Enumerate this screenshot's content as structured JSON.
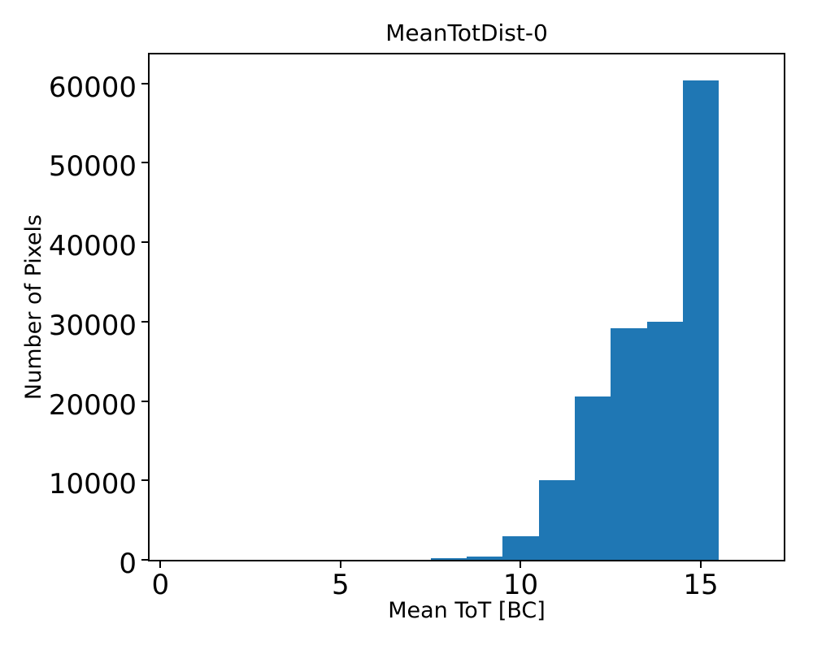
{
  "figure": {
    "title": "MeanTotDist-0",
    "xlabel": "Mean ToT [BC]",
    "ylabel": "Number of Pixels",
    "background_color": "#ffffff",
    "axis_color": "#000000"
  },
  "chart_data": {
    "type": "bar",
    "subtype": "histogram",
    "title": "MeanTotDist-0",
    "xlabel": "Mean ToT [BC]",
    "ylabel": "Number of Pixels",
    "bin_edges": [
      7.5,
      8.5,
      9.5,
      10.5,
      11.5,
      12.5,
      13.5,
      14.5,
      15.5
    ],
    "bin_centers": [
      8,
      9,
      10,
      11,
      12,
      13,
      14,
      15
    ],
    "counts": [
      180,
      400,
      3000,
      10000,
      20600,
      29200,
      30000,
      60350
    ],
    "x_ticks": [
      0,
      5,
      10,
      15
    ],
    "y_ticks": [
      0,
      10000,
      20000,
      30000,
      40000,
      50000,
      60000
    ],
    "xlim": [
      -0.3,
      17.3
    ],
    "ylim": [
      0,
      63660
    ],
    "grid": false,
    "legend": null,
    "bar_color": "#1f77b4"
  }
}
